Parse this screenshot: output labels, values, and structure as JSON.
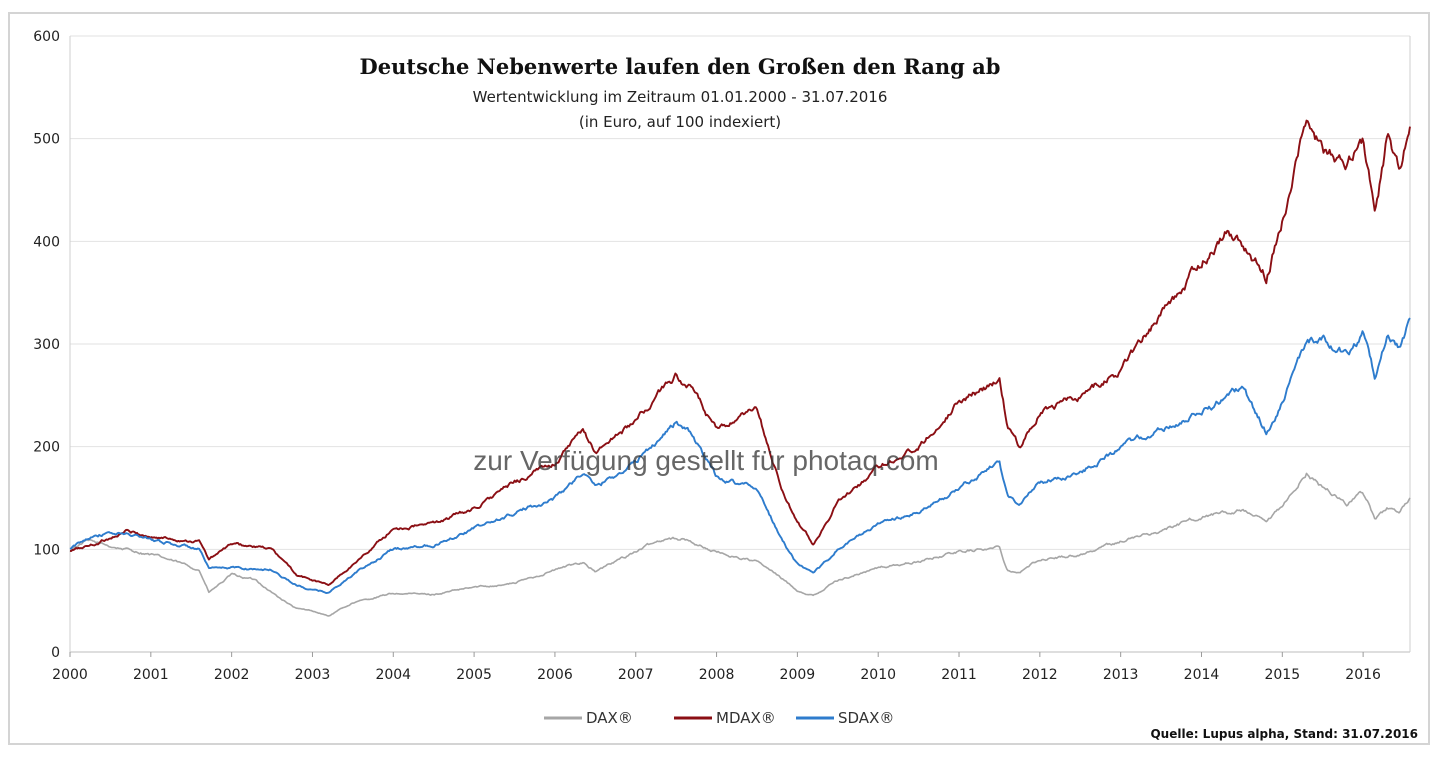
{
  "chart_data": {
    "type": "line",
    "title": "Deutsche Nebenwerte laufen den Großen den Rang ab",
    "subtitle": "Wertentwicklung im Zeitraum 01.01.2000  - 31.07.2016",
    "subtitle2": "(in Euro, auf 100 indexiert)",
    "xlabel": "",
    "ylabel": "",
    "xlim": [
      2000,
      2016.58
    ],
    "ylim": [
      0,
      600
    ],
    "x_ticks": [
      "2000",
      "2001",
      "2002",
      "2003",
      "2004",
      "2005",
      "2006",
      "2007",
      "2008",
      "2009",
      "2010",
      "2011",
      "2012",
      "2013",
      "2014",
      "2015",
      "2016"
    ],
    "y_ticks": [
      "0",
      "100",
      "200",
      "300",
      "400",
      "500",
      "600"
    ],
    "grid": true,
    "legend_position": "bottom-center",
    "source": "Quelle: Lupus alpha, Stand: 31.07.2016",
    "watermark": "zur Verfügung gestellt für photaq.com",
    "series": [
      {
        "name": "DAX®",
        "color": "#a6a6a6",
        "x": [
          2000.0,
          2000.2,
          2000.5,
          2000.7,
          2001.0,
          2001.3,
          2001.6,
          2001.72,
          2002.0,
          2002.3,
          2002.55,
          2002.8,
          2003.0,
          2003.2,
          2003.5,
          2004.0,
          2004.5,
          2005.0,
          2005.5,
          2006.0,
          2006.35,
          2006.5,
          2007.0,
          2007.4,
          2007.6,
          2008.0,
          2008.5,
          2008.8,
          2009.0,
          2009.2,
          2009.5,
          2010.0,
          2010.5,
          2011.0,
          2011.5,
          2011.6,
          2011.75,
          2012.0,
          2012.5,
          2013.0,
          2013.5,
          2014.0,
          2014.5,
          2014.8,
          2015.0,
          2015.3,
          2015.5,
          2015.8,
          2016.0,
          2016.15,
          2016.3,
          2016.45,
          2016.58
        ],
        "values": [
          100,
          108,
          103,
          100,
          95,
          88,
          80,
          58,
          75,
          70,
          55,
          42,
          40,
          35,
          48,
          57,
          56,
          63,
          67,
          80,
          88,
          78,
          98,
          112,
          110,
          97,
          88,
          72,
          60,
          55,
          70,
          82,
          88,
          98,
          102,
          80,
          78,
          90,
          95,
          108,
          118,
          132,
          138,
          125,
          140,
          175,
          160,
          145,
          155,
          130,
          140,
          138,
          148
        ]
      },
      {
        "name": "MDAX®",
        "color": "#8b0f14",
        "x": [
          2000.0,
          2000.3,
          2000.7,
          2001.0,
          2001.3,
          2001.6,
          2001.72,
          2002.0,
          2002.5,
          2002.8,
          2003.0,
          2003.2,
          2003.5,
          2004.0,
          2004.5,
          2005.0,
          2005.5,
          2006.0,
          2006.35,
          2006.5,
          2007.0,
          2007.5,
          2007.7,
          2008.0,
          2008.5,
          2008.8,
          2009.0,
          2009.2,
          2009.5,
          2010.0,
          2010.5,
          2011.0,
          2011.5,
          2011.6,
          2011.75,
          2012.0,
          2012.5,
          2013.0,
          2013.5,
          2014.0,
          2014.3,
          2014.5,
          2014.8,
          2015.0,
          2015.3,
          2015.5,
          2015.8,
          2016.0,
          2016.15,
          2016.3,
          2016.45,
          2016.58
        ],
        "values": [
          98,
          105,
          118,
          112,
          110,
          108,
          90,
          105,
          100,
          75,
          70,
          65,
          85,
          120,
          125,
          140,
          165,
          185,
          215,
          195,
          225,
          270,
          255,
          215,
          235,
          160,
          125,
          105,
          145,
          180,
          200,
          245,
          265,
          220,
          200,
          235,
          250,
          275,
          330,
          380,
          410,
          400,
          365,
          420,
          520,
          490,
          470,
          500,
          430,
          500,
          470,
          515
        ]
      },
      {
        "name": "SDAX®",
        "color": "#2e7ccd",
        "x": [
          2000.0,
          2000.3,
          2000.7,
          2001.0,
          2001.3,
          2001.6,
          2001.72,
          2002.0,
          2002.5,
          2002.8,
          2003.0,
          2003.2,
          2003.5,
          2004.0,
          2004.5,
          2005.0,
          2005.5,
          2006.0,
          2006.35,
          2006.5,
          2007.0,
          2007.5,
          2007.7,
          2008.0,
          2008.5,
          2008.8,
          2009.0,
          2009.2,
          2009.5,
          2010.0,
          2010.5,
          2011.0,
          2011.5,
          2011.6,
          2011.75,
          2012.0,
          2012.5,
          2013.0,
          2013.5,
          2014.0,
          2014.5,
          2014.8,
          2015.0,
          2015.3,
          2015.5,
          2015.8,
          2016.0,
          2016.15,
          2016.3,
          2016.45,
          2016.58
        ],
        "values": [
          100,
          115,
          115,
          110,
          105,
          100,
          80,
          82,
          80,
          65,
          60,
          58,
          75,
          100,
          105,
          120,
          135,
          150,
          175,
          160,
          185,
          225,
          210,
          170,
          160,
          110,
          85,
          75,
          100,
          125,
          135,
          160,
          185,
          150,
          145,
          165,
          175,
          200,
          215,
          235,
          255,
          215,
          245,
          300,
          305,
          290,
          310,
          265,
          305,
          295,
          322
        ]
      }
    ]
  }
}
